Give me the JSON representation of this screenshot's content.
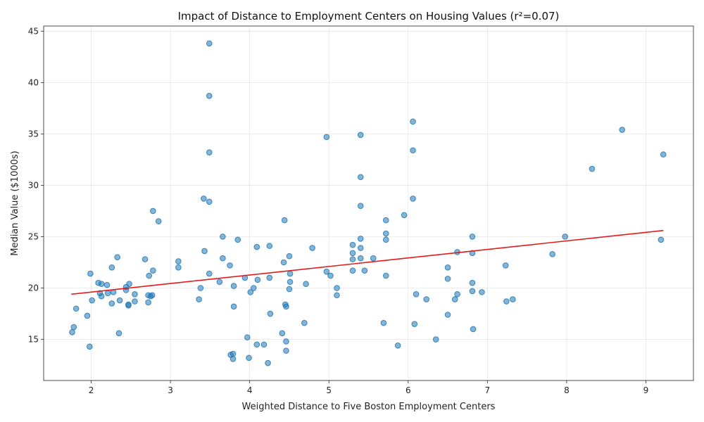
{
  "chart_data": {
    "type": "scatter",
    "title": "Impact of Distance to Employment Centers on Housing Values (r²=0.07)",
    "xlabel": "Weighted Distance to Five Boston Employment Centers",
    "ylabel": "Median Value ($1000s)",
    "xlim": [
      1.4,
      9.6
    ],
    "ylim": [
      11.0,
      45.5
    ],
    "xticks": [
      2,
      3,
      4,
      5,
      6,
      7,
      8,
      9
    ],
    "yticks": [
      15,
      20,
      25,
      30,
      35,
      40,
      45
    ],
    "grid": true,
    "colors": {
      "points": "#1f77b4",
      "trendline": "#e41a1c"
    },
    "trendline": {
      "x": [
        1.75,
        9.22
      ],
      "y": [
        19.4,
        25.6
      ]
    },
    "points": [
      [
        3.49,
        43.8
      ],
      [
        3.49,
        38.7
      ],
      [
        3.49,
        33.2
      ],
      [
        4.97,
        34.7
      ],
      [
        5.4,
        34.9
      ],
      [
        6.06,
        36.2
      ],
      [
        6.06,
        33.4
      ],
      [
        8.7,
        35.4
      ],
      [
        9.22,
        33.0
      ],
      [
        8.32,
        31.6
      ],
      [
        5.4,
        30.8
      ],
      [
        6.06,
        28.7
      ],
      [
        5.4,
        28.0
      ],
      [
        3.42,
        28.7
      ],
      [
        3.49,
        28.4
      ],
      [
        2.78,
        27.5
      ],
      [
        2.85,
        26.5
      ],
      [
        4.44,
        26.6
      ],
      [
        5.72,
        26.6
      ],
      [
        5.95,
        27.1
      ],
      [
        5.72,
        25.3
      ],
      [
        6.81,
        25.0
      ],
      [
        7.98,
        25.0
      ],
      [
        9.19,
        24.7
      ],
      [
        5.4,
        24.8
      ],
      [
        5.72,
        24.7
      ],
      [
        3.66,
        25.0
      ],
      [
        3.85,
        24.7
      ],
      [
        4.09,
        24.0
      ],
      [
        4.25,
        24.1
      ],
      [
        4.79,
        23.9
      ],
      [
        5.3,
        24.2
      ],
      [
        5.4,
        23.9
      ],
      [
        6.62,
        23.5
      ],
      [
        6.81,
        23.4
      ],
      [
        7.82,
        23.3
      ],
      [
        3.43,
        23.6
      ],
      [
        3.66,
        22.9
      ],
      [
        4.5,
        23.1
      ],
      [
        5.3,
        23.4
      ],
      [
        5.3,
        22.8
      ],
      [
        5.4,
        22.9
      ],
      [
        5.56,
        22.9
      ],
      [
        2.33,
        23.0
      ],
      [
        2.68,
        22.8
      ],
      [
        3.1,
        22.6
      ],
      [
        3.75,
        22.2
      ],
      [
        4.43,
        22.5
      ],
      [
        6.5,
        22.0
      ],
      [
        7.23,
        22.2
      ],
      [
        2.26,
        22.0
      ],
      [
        3.1,
        22.0
      ],
      [
        2.78,
        21.7
      ],
      [
        1.99,
        21.4
      ],
      [
        2.73,
        21.2
      ],
      [
        3.49,
        21.4
      ],
      [
        4.51,
        21.4
      ],
      [
        4.97,
        21.6
      ],
      [
        5.02,
        21.2
      ],
      [
        5.3,
        21.7
      ],
      [
        5.45,
        21.7
      ],
      [
        5.72,
        21.2
      ],
      [
        6.5,
        20.9
      ],
      [
        6.81,
        20.5
      ],
      [
        3.94,
        21.0
      ],
      [
        4.25,
        21.0
      ],
      [
        4.1,
        20.8
      ],
      [
        3.62,
        20.6
      ],
      [
        4.51,
        20.6
      ],
      [
        4.71,
        20.4
      ],
      [
        2.09,
        20.5
      ],
      [
        2.13,
        20.4
      ],
      [
        2.2,
        20.3
      ],
      [
        2.48,
        20.4
      ],
      [
        2.44,
        20.1
      ],
      [
        2.44,
        19.8
      ],
      [
        3.38,
        20.0
      ],
      [
        3.8,
        20.2
      ],
      [
        4.05,
        20.0
      ],
      [
        4.5,
        19.9
      ],
      [
        5.1,
        20.0
      ],
      [
        6.81,
        19.7
      ],
      [
        6.93,
        19.6
      ],
      [
        6.62,
        19.4
      ],
      [
        6.1,
        19.4
      ],
      [
        5.1,
        19.3
      ],
      [
        4.01,
        19.6
      ],
      [
        2.11,
        19.5
      ],
      [
        2.13,
        19.2
      ],
      [
        2.21,
        19.5
      ],
      [
        2.28,
        19.6
      ],
      [
        2.55,
        19.4
      ],
      [
        2.72,
        19.3
      ],
      [
        2.77,
        19.3
      ],
      [
        2.75,
        19.2
      ],
      [
        3.36,
        18.9
      ],
      [
        6.23,
        18.9
      ],
      [
        6.59,
        18.9
      ],
      [
        7.24,
        18.7
      ],
      [
        7.32,
        18.9
      ],
      [
        2.01,
        18.8
      ],
      [
        2.26,
        18.5
      ],
      [
        2.36,
        18.8
      ],
      [
        2.47,
        18.4
      ],
      [
        2.47,
        18.3
      ],
      [
        2.55,
        18.7
      ],
      [
        2.72,
        18.6
      ],
      [
        4.45,
        18.4
      ],
      [
        4.46,
        18.2
      ],
      [
        3.8,
        18.2
      ],
      [
        1.81,
        18.0
      ],
      [
        1.95,
        17.3
      ],
      [
        4.26,
        17.5
      ],
      [
        6.5,
        17.4
      ],
      [
        1.78,
        16.2
      ],
      [
        1.76,
        15.7
      ],
      [
        4.69,
        16.6
      ],
      [
        5.69,
        16.6
      ],
      [
        6.08,
        16.5
      ],
      [
        6.82,
        16.0
      ],
      [
        2.35,
        15.6
      ],
      [
        3.97,
        15.2
      ],
      [
        4.41,
        15.6
      ],
      [
        6.35,
        15.0
      ],
      [
        4.09,
        14.5
      ],
      [
        4.18,
        14.5
      ],
      [
        4.46,
        14.8
      ],
      [
        1.98,
        14.3
      ],
      [
        5.87,
        14.4
      ],
      [
        4.46,
        13.9
      ],
      [
        3.76,
        13.5
      ],
      [
        3.79,
        13.6
      ],
      [
        3.79,
        13.1
      ],
      [
        3.99,
        13.2
      ],
      [
        4.23,
        12.7
      ]
    ]
  }
}
